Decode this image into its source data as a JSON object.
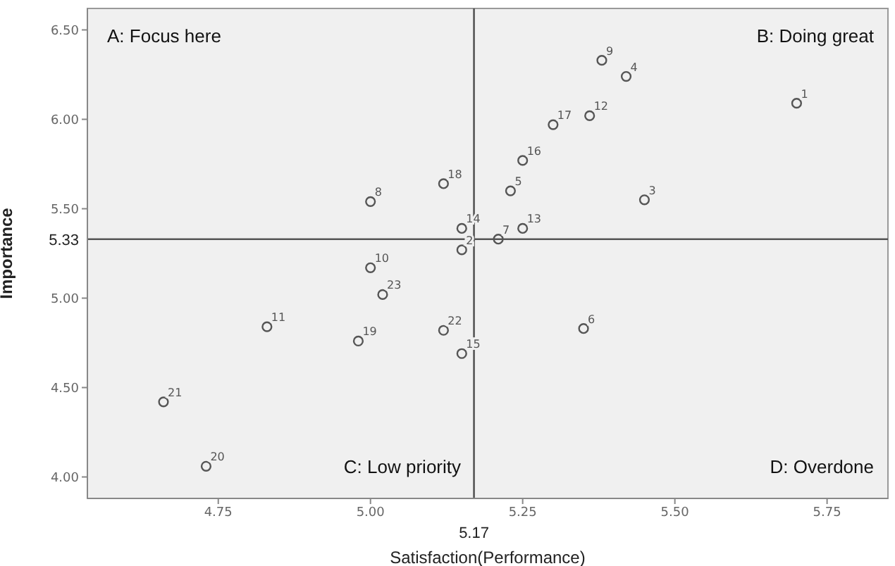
{
  "chart_data": {
    "type": "scatter",
    "xlabel": "Satisfaction(Performance)",
    "ylabel": "Importance",
    "series": [
      {
        "name": "1",
        "color": "#555555",
        "x": [
          5.7
        ],
        "values": [
          6.09
        ]
      },
      {
        "name": "2",
        "color": "#555555",
        "x": [
          5.15
        ],
        "values": [
          5.27
        ]
      },
      {
        "name": "3",
        "color": "#555555",
        "x": [
          5.45
        ],
        "values": [
          5.55
        ]
      },
      {
        "name": "4",
        "color": "#555555",
        "x": [
          5.42
        ],
        "values": [
          6.24
        ]
      },
      {
        "name": "5",
        "color": "#555555",
        "x": [
          5.23
        ],
        "values": [
          5.6
        ]
      },
      {
        "name": "6",
        "color": "#555555",
        "x": [
          5.35
        ],
        "values": [
          4.83
        ]
      },
      {
        "name": "7",
        "color": "#555555",
        "x": [
          5.21
        ],
        "values": [
          5.33
        ]
      },
      {
        "name": "8",
        "color": "#555555",
        "x": [
          5.0
        ],
        "values": [
          5.54
        ]
      },
      {
        "name": "9",
        "color": "#555555",
        "x": [
          5.38
        ],
        "values": [
          6.33
        ]
      },
      {
        "name": "10",
        "color": "#555555",
        "x": [
          5.0
        ],
        "values": [
          5.17
        ]
      },
      {
        "name": "11",
        "color": "#555555",
        "x": [
          4.83
        ],
        "values": [
          4.84
        ]
      },
      {
        "name": "12",
        "color": "#555555",
        "x": [
          5.36
        ],
        "values": [
          6.02
        ]
      },
      {
        "name": "13",
        "color": "#555555",
        "x": [
          5.25
        ],
        "values": [
          5.39
        ]
      },
      {
        "name": "14",
        "color": "#555555",
        "x": [
          5.15
        ],
        "values": [
          5.39
        ]
      },
      {
        "name": "15",
        "color": "#555555",
        "x": [
          5.15
        ],
        "values": [
          4.69
        ]
      },
      {
        "name": "16",
        "color": "#555555",
        "x": [
          5.25
        ],
        "values": [
          5.77
        ]
      },
      {
        "name": "17",
        "color": "#555555",
        "x": [
          5.3
        ],
        "values": [
          5.97
        ]
      },
      {
        "name": "18",
        "color": "#555555",
        "x": [
          5.12
        ],
        "values": [
          5.64
        ]
      },
      {
        "name": "19",
        "color": "#555555",
        "x": [
          4.98
        ],
        "values": [
          4.76
        ]
      },
      {
        "name": "20",
        "color": "#555555",
        "x": [
          4.73
        ],
        "values": [
          4.06
        ]
      },
      {
        "name": "21",
        "color": "#555555",
        "x": [
          4.66
        ],
        "values": [
          4.42
        ]
      },
      {
        "name": "22",
        "color": "#555555",
        "x": [
          5.12
        ],
        "values": [
          4.82
        ]
      },
      {
        "name": "23",
        "color": "#555555",
        "x": [
          5.02
        ],
        "values": [
          5.02
        ]
      }
    ],
    "xlim": [
      4.535,
      5.85
    ],
    "ylim": [
      3.88,
      6.62
    ],
    "xticks": [
      {
        "value": 4.75,
        "label": "4.75"
      },
      {
        "value": 5,
        "label": "5.00"
      },
      {
        "value": 5.25,
        "label": "5.25"
      },
      {
        "value": 5.5,
        "label": "5.50"
      },
      {
        "value": 5.75,
        "label": "5.75"
      }
    ],
    "yticks": [
      {
        "value": 4,
        "label": "4.00"
      },
      {
        "value": 4.5,
        "label": "4.50"
      },
      {
        "value": 5,
        "label": "5.00"
      },
      {
        "value": 5.5,
        "label": "5.50"
      },
      {
        "value": 6,
        "label": "6.00"
      },
      {
        "value": 6.5,
        "label": "6.50"
      }
    ],
    "ref_lines": [
      {
        "axis": "x",
        "value": 5.17,
        "label": "5.17",
        "color": "#555555"
      },
      {
        "axis": "y",
        "value": 5.33,
        "label": "5.33",
        "color": "#555555"
      }
    ],
    "annotations": [
      "A: Focus here",
      "B: Doing great",
      "C: Low priority",
      "D: Overdone"
    ],
    "marker": "circle"
  }
}
